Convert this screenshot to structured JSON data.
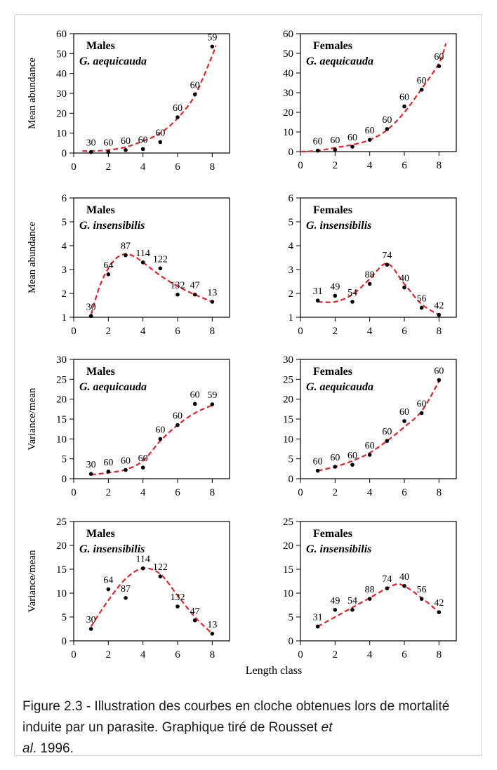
{
  "shared_xlabel": "Length class",
  "caption": {
    "text": "Figure 2.3 - Illustration des courbes en cloche obtenues lors de mortalité induite par un parasite. Graphique tiré de Rousset ",
    "et": "et",
    "al": "al",
    "tail": ". 1996."
  },
  "colors": {
    "curve": "#e0262b",
    "point": "#000000",
    "axis": "#000000"
  },
  "chart_data": [
    {
      "type": "scatter",
      "sex": "Males",
      "species": "G.  aequicauda",
      "ylabel": "Mean abundance",
      "xlim": [
        0,
        9
      ],
      "ylim": [
        0,
        60
      ],
      "xticks": [
        0,
        2,
        4,
        6,
        8
      ],
      "yticks": [
        0,
        10,
        20,
        30,
        40,
        50,
        60
      ],
      "x": [
        1,
        2,
        3,
        4,
        5,
        6,
        7,
        8
      ],
      "y": [
        0.5,
        0.5,
        1.5,
        2,
        5.5,
        18,
        29.5,
        53.5
      ],
      "n_labels": [
        "30",
        "60",
        "60",
        "60",
        "60",
        "60",
        "60",
        "59"
      ],
      "fit_x": [
        0.5,
        1,
        2,
        3,
        4,
        5,
        6,
        7,
        8,
        8.2
      ],
      "fit_y": [
        1,
        1,
        1.5,
        3,
        6,
        10,
        17.5,
        29,
        49,
        54
      ]
    },
    {
      "type": "scatter",
      "sex": "Females",
      "species": "G.  aequicauda",
      "ylabel": "",
      "xlim": [
        0,
        9
      ],
      "ylim": [
        0,
        60
      ],
      "xticks": [
        0,
        2,
        4,
        6,
        8
      ],
      "yticks": [
        0,
        10,
        20,
        30,
        40,
        50,
        60
      ],
      "x": [
        1,
        2,
        3,
        4,
        5,
        6,
        7,
        8
      ],
      "y": [
        0.5,
        1,
        2.5,
        6,
        11.5,
        23,
        31.5,
        43.5
      ],
      "n_labels": [
        "60",
        "60",
        "60",
        "60",
        "60",
        "60",
        "60",
        "60"
      ],
      "fit_x": [
        0,
        1,
        2,
        3,
        4,
        5,
        6,
        7,
        8,
        8.4
      ],
      "fit_y": [
        0,
        0.5,
        2,
        3.5,
        6,
        11,
        20,
        32,
        45,
        55
      ]
    },
    {
      "type": "scatter",
      "sex": "Males",
      "species": "G.  insensibilis",
      "ylabel": "Mean abundance",
      "xlim": [
        0,
        9
      ],
      "ylim": [
        1,
        6
      ],
      "xticks": [
        0,
        2,
        4,
        6,
        8
      ],
      "yticks": [
        1,
        2,
        3,
        4,
        5,
        6
      ],
      "x": [
        1,
        2,
        3,
        4,
        5,
        6,
        7,
        8
      ],
      "y": [
        1.05,
        2.8,
        3.6,
        3.3,
        3.05,
        1.95,
        1.95,
        1.65
      ],
      "n_labels": [
        "30",
        "64",
        "87",
        "114",
        "122",
        "132",
        "47",
        "13"
      ],
      "fit_x": [
        1,
        1.5,
        2,
        2.5,
        3,
        3.5,
        4,
        5,
        6,
        7,
        8
      ],
      "fit_y": [
        1.1,
        2.3,
        3.05,
        3.5,
        3.65,
        3.55,
        3.3,
        2.75,
        2.3,
        1.95,
        1.65
      ]
    },
    {
      "type": "scatter",
      "sex": "Females",
      "species": "G.  insensibilis",
      "ylabel": "",
      "xlim": [
        0,
        9
      ],
      "ylim": [
        1,
        6
      ],
      "xticks": [
        0,
        2,
        4,
        6,
        8
      ],
      "yticks": [
        1,
        2,
        3,
        4,
        5,
        6
      ],
      "x": [
        1,
        2,
        3,
        4,
        5,
        6,
        7,
        8
      ],
      "y": [
        1.7,
        1.9,
        1.65,
        2.4,
        3.2,
        2.25,
        1.4,
        1.1
      ],
      "n_labels": [
        "31",
        "49",
        "54",
        "88",
        "74",
        "40",
        "56",
        "42"
      ],
      "fit_x": [
        1,
        2,
        3,
        4,
        5,
        6,
        7,
        8
      ],
      "fit_y": [
        1.65,
        1.65,
        1.95,
        2.6,
        3.25,
        2.4,
        1.55,
        1.1
      ]
    },
    {
      "type": "scatter",
      "sex": "Males",
      "species": "G.  aequicauda",
      "ylabel": "Variance/mean",
      "xlim": [
        0,
        9
      ],
      "ylim": [
        0,
        30
      ],
      "xticks": [
        0,
        2,
        4,
        6,
        8
      ],
      "yticks": [
        0,
        5,
        10,
        15,
        20,
        25,
        30
      ],
      "x": [
        1,
        2,
        3,
        4,
        5,
        6,
        7,
        8
      ],
      "y": [
        1.2,
        1.8,
        2.2,
        2.8,
        10,
        13.5,
        18.8,
        18.7
      ],
      "n_labels": [
        "30",
        "60",
        "60",
        "60",
        "60",
        "60",
        "60",
        "59"
      ],
      "fit_x": [
        1,
        2,
        3,
        4,
        5,
        6,
        7,
        8
      ],
      "fit_y": [
        1,
        1.5,
        2.3,
        4.5,
        9.5,
        13.5,
        16.5,
        18.5
      ]
    },
    {
      "type": "scatter",
      "sex": "Females",
      "species": "G.  aequicauda",
      "ylabel": "",
      "xlim": [
        0,
        9
      ],
      "ylim": [
        0,
        30
      ],
      "xticks": [
        0,
        2,
        4,
        6,
        8
      ],
      "yticks": [
        0,
        5,
        10,
        15,
        20,
        25,
        30
      ],
      "x": [
        1,
        2,
        3,
        4,
        5,
        6,
        7,
        8
      ],
      "y": [
        2,
        3,
        3.5,
        6,
        9.5,
        14.5,
        16.5,
        24.8
      ],
      "n_labels": [
        "60",
        "60",
        "60",
        "60",
        "60",
        "60",
        "60",
        "60"
      ],
      "fit_x": [
        1,
        2,
        3,
        4,
        5,
        6,
        7,
        8
      ],
      "fit_y": [
        2,
        3,
        4.5,
        6.5,
        9.5,
        13,
        17,
        24.5
      ]
    },
    {
      "type": "scatter",
      "sex": "Males",
      "species": "G.  insensibilis",
      "ylabel": "Variance/mean",
      "xlim": [
        0,
        9
      ],
      "ylim": [
        0,
        25
      ],
      "xticks": [
        0,
        2,
        4,
        6,
        8
      ],
      "yticks": [
        0,
        5,
        10,
        15,
        20,
        25
      ],
      "x": [
        1,
        2,
        3,
        4,
        5,
        6,
        7,
        8
      ],
      "y": [
        2.5,
        10.8,
        9,
        15.2,
        13.5,
        7.2,
        4.3,
        1.5
      ],
      "n_labels": [
        "30",
        "64",
        "87",
        "114",
        "122",
        "132",
        "47",
        "13"
      ],
      "fit_x": [
        1,
        2,
        3,
        4,
        5,
        6,
        7,
        8
      ],
      "fit_y": [
        3,
        8.5,
        13,
        15.2,
        14,
        9.5,
        5,
        1.5
      ]
    },
    {
      "type": "scatter",
      "sex": "Females",
      "species": "G.  insensibilis",
      "ylabel": "",
      "xlim": [
        0,
        9
      ],
      "ylim": [
        0,
        25
      ],
      "xticks": [
        0,
        2,
        4,
        6,
        8
      ],
      "yticks": [
        0,
        5,
        10,
        15,
        20,
        25
      ],
      "x": [
        1,
        2,
        3,
        4,
        5,
        6,
        7,
        8
      ],
      "y": [
        3,
        6.5,
        6.5,
        8.8,
        11,
        11.5,
        8.8,
        6
      ],
      "n_labels": [
        "31",
        "49",
        "54",
        "88",
        "74",
        "40",
        "56",
        "42"
      ],
      "fit_x": [
        1,
        2,
        3,
        4,
        5,
        5.8,
        7,
        8
      ],
      "fit_y": [
        3,
        5,
        7,
        9,
        11,
        11.8,
        9,
        6
      ]
    }
  ]
}
